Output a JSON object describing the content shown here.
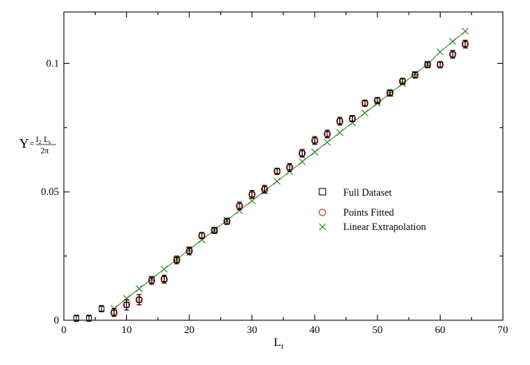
{
  "chart_data": {
    "type": "scatter",
    "title": "",
    "xlabel": {
      "main": "L",
      "sub": "t"
    },
    "ylabel": {
      "symbol": "Υ",
      "eq": "=",
      "num_a": "I",
      "num_a_sub": "2",
      "num_b": "L",
      "num_b_sub": "s",
      "den": "2π"
    },
    "xlim": [
      0,
      70
    ],
    "ylim": [
      0,
      0.12
    ],
    "xticks": [
      0,
      10,
      20,
      30,
      40,
      50,
      60,
      70
    ],
    "yticks": [
      0,
      0.05,
      0.1
    ],
    "xtick_labels": [
      "0",
      "10",
      "20",
      "30",
      "40",
      "50",
      "60",
      "70"
    ],
    "ytick_labels": [
      "0",
      "0.05",
      "0.1"
    ],
    "grid": false,
    "legend_position": "center-right",
    "colors": {
      "full": "#000000",
      "fitted": "#ff0000",
      "linear": "#2e8b2e"
    },
    "series": [
      {
        "name": "Full Dataset",
        "marker": "square",
        "color": "#000000",
        "x": [
          2,
          4,
          6,
          8,
          10,
          12,
          14,
          16,
          18,
          20,
          22,
          24,
          26,
          28,
          30,
          32,
          34,
          36,
          38,
          40,
          42,
          44,
          46,
          48,
          50,
          52,
          54,
          56,
          58,
          60,
          62,
          64
        ],
        "y": [
          0.0008,
          0.0008,
          0.0045,
          0.003,
          0.006,
          0.008,
          0.0155,
          0.016,
          0.0235,
          0.027,
          0.033,
          0.035,
          0.0385,
          0.0445,
          0.049,
          0.051,
          0.058,
          0.0595,
          0.065,
          0.07,
          0.0725,
          0.0775,
          0.0785,
          0.0845,
          0.0855,
          0.0885,
          0.093,
          0.0955,
          0.0995,
          0.0995,
          0.1035,
          0.1075
        ],
        "yerr": [
          0.0012,
          0.0012,
          0.0012,
          0.0015,
          0.002,
          0.002,
          0.0015,
          0.0015,
          0.0015,
          0.0015,
          0.0012,
          0.0012,
          0.0012,
          0.0015,
          0.0015,
          0.0015,
          0.0012,
          0.0015,
          0.0015,
          0.0015,
          0.0015,
          0.0015,
          0.0012,
          0.0012,
          0.0012,
          0.0012,
          0.0012,
          0.0012,
          0.0012,
          0.0012,
          0.0015,
          0.0015
        ]
      },
      {
        "name": "Points Fitted",
        "marker": "circle",
        "color": "#ff0000",
        "x": [
          8,
          10,
          12,
          14,
          16,
          18,
          20,
          22,
          24,
          26,
          28,
          30,
          32,
          34,
          36,
          38,
          40,
          42,
          44,
          46,
          48,
          50,
          52,
          54,
          56,
          58,
          60,
          62,
          64
        ],
        "y": [
          0.003,
          0.006,
          0.008,
          0.0155,
          0.016,
          0.0235,
          0.027,
          0.033,
          0.035,
          0.0385,
          0.0445,
          0.049,
          0.051,
          0.058,
          0.0595,
          0.065,
          0.07,
          0.0725,
          0.0775,
          0.0785,
          0.0845,
          0.0855,
          0.0885,
          0.093,
          0.0955,
          0.0995,
          0.0995,
          0.1035,
          0.1075
        ],
        "yerr": [
          0.0015,
          0.002,
          0.002,
          0.0015,
          0.0015,
          0.0015,
          0.0015,
          0.0012,
          0.0012,
          0.0012,
          0.0015,
          0.0015,
          0.0015,
          0.0012,
          0.0015,
          0.0015,
          0.0015,
          0.0015,
          0.0015,
          0.0012,
          0.0012,
          0.0012,
          0.0012,
          0.0012,
          0.0012,
          0.0012,
          0.0012,
          0.0015,
          0.0015
        ]
      },
      {
        "name": "Linear Extrapolation",
        "marker": "cross",
        "color": "#2e8b2e",
        "line": true,
        "x": [
          8,
          10,
          12,
          14,
          16,
          18,
          20,
          22,
          24,
          26,
          28,
          30,
          32,
          34,
          36,
          38,
          40,
          42,
          44,
          46,
          48,
          50,
          52,
          54,
          56,
          58,
          60,
          62,
          64
        ],
        "y": [
          0.0045,
          0.0085,
          0.0123,
          0.0161,
          0.0199,
          0.0237,
          0.0275,
          0.0313,
          0.0351,
          0.0389,
          0.0427,
          0.0465,
          0.0503,
          0.0541,
          0.0579,
          0.0617,
          0.0655,
          0.0693,
          0.0731,
          0.0769,
          0.0807,
          0.0845,
          0.0883,
          0.0921,
          0.0959,
          0.0997,
          0.1045,
          0.1085,
          0.1125
        ]
      }
    ]
  }
}
